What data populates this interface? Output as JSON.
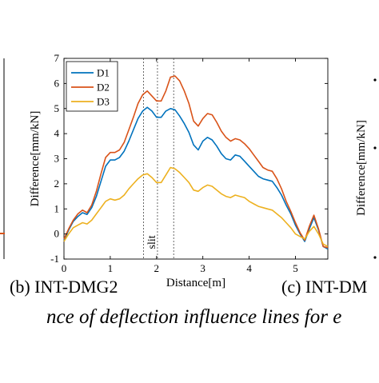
{
  "chart_data": {
    "type": "line",
    "title": "",
    "xlabel": "Distance[m]",
    "ylabel": "Difference[mm/kN]",
    "xlim": [
      0,
      5.7
    ],
    "ylim": [
      -1,
      7
    ],
    "xticks": [
      0,
      1,
      2,
      3,
      4,
      5
    ],
    "yticks": [
      -1,
      0,
      1,
      2,
      3,
      4,
      5,
      6,
      7
    ],
    "grid": false,
    "legend_position": "top-left",
    "annotation": "slit",
    "slit_lines_x": [
      1.72,
      2.02,
      2.37
    ],
    "x": [
      0,
      0.1,
      0.2,
      0.3,
      0.4,
      0.5,
      0.6,
      0.7,
      0.8,
      0.9,
      1.0,
      1.1,
      1.2,
      1.3,
      1.4,
      1.5,
      1.6,
      1.7,
      1.8,
      1.9,
      2.0,
      2.1,
      2.2,
      2.3,
      2.4,
      2.5,
      2.6,
      2.7,
      2.8,
      2.9,
      3.0,
      3.1,
      3.2,
      3.3,
      3.4,
      3.5,
      3.6,
      3.7,
      3.8,
      3.9,
      4.0,
      4.1,
      4.2,
      4.3,
      4.4,
      4.5,
      4.6,
      4.7,
      4.8,
      4.9,
      5.0,
      5.1,
      5.2,
      5.3,
      5.4,
      5.5,
      5.6,
      5.7
    ],
    "series": [
      {
        "name": "D1",
        "color": "#0072BD",
        "values": [
          -0.25,
          0.15,
          0.5,
          0.7,
          0.85,
          0.78,
          1.05,
          1.5,
          2.1,
          2.7,
          2.95,
          2.95,
          3.05,
          3.3,
          3.7,
          4.15,
          4.6,
          4.9,
          5.05,
          4.9,
          4.65,
          4.65,
          4.9,
          5.0,
          4.95,
          4.7,
          4.4,
          4.05,
          3.55,
          3.35,
          3.7,
          3.85,
          3.75,
          3.5,
          3.2,
          3.0,
          2.95,
          3.15,
          3.1,
          2.9,
          2.7,
          2.5,
          2.3,
          2.2,
          2.15,
          2.1,
          1.85,
          1.55,
          1.15,
          0.8,
          0.35,
          0.0,
          -0.3,
          0.2,
          0.65,
          0.15,
          -0.5,
          -0.6
        ]
      },
      {
        "name": "D2",
        "color": "#D95319",
        "values": [
          -0.2,
          0.2,
          0.55,
          0.8,
          0.95,
          0.85,
          1.15,
          1.7,
          2.4,
          3.05,
          3.25,
          3.25,
          3.35,
          3.65,
          4.15,
          4.65,
          5.2,
          5.55,
          5.7,
          5.5,
          5.3,
          5.3,
          5.7,
          6.25,
          6.3,
          6.1,
          5.7,
          5.2,
          4.5,
          4.3,
          4.6,
          4.8,
          4.75,
          4.45,
          4.1,
          3.85,
          3.7,
          3.8,
          3.75,
          3.6,
          3.4,
          3.15,
          2.9,
          2.65,
          2.55,
          2.5,
          2.2,
          1.8,
          1.3,
          0.9,
          0.45,
          0.05,
          -0.25,
          0.3,
          0.75,
          0.2,
          -0.5,
          -0.55
        ]
      },
      {
        "name": "D3",
        "color": "#EDB120",
        "values": [
          -0.3,
          0.0,
          0.25,
          0.35,
          0.45,
          0.4,
          0.55,
          0.8,
          1.05,
          1.3,
          1.4,
          1.35,
          1.4,
          1.55,
          1.8,
          2.0,
          2.2,
          2.35,
          2.4,
          2.25,
          2.05,
          2.05,
          2.35,
          2.65,
          2.6,
          2.45,
          2.25,
          2.05,
          1.75,
          1.7,
          1.85,
          1.95,
          1.9,
          1.75,
          1.6,
          1.5,
          1.45,
          1.55,
          1.5,
          1.45,
          1.3,
          1.2,
          1.1,
          1.05,
          1.0,
          0.95,
          0.8,
          0.65,
          0.45,
          0.25,
          0.0,
          -0.1,
          -0.2,
          0.1,
          0.3,
          0.0,
          -0.4,
          -0.5
        ]
      }
    ]
  },
  "captions": {
    "panel_b": "(b) INT-DMG2",
    "panel_c": "(c) INT-DM",
    "figure": "nce of deflection influence lines for e"
  },
  "left_panel": {
    "axis_color": "#000000",
    "marker_color": "#D95319"
  },
  "right_panel": {
    "ylabel": "Difference[mm/kN]"
  }
}
